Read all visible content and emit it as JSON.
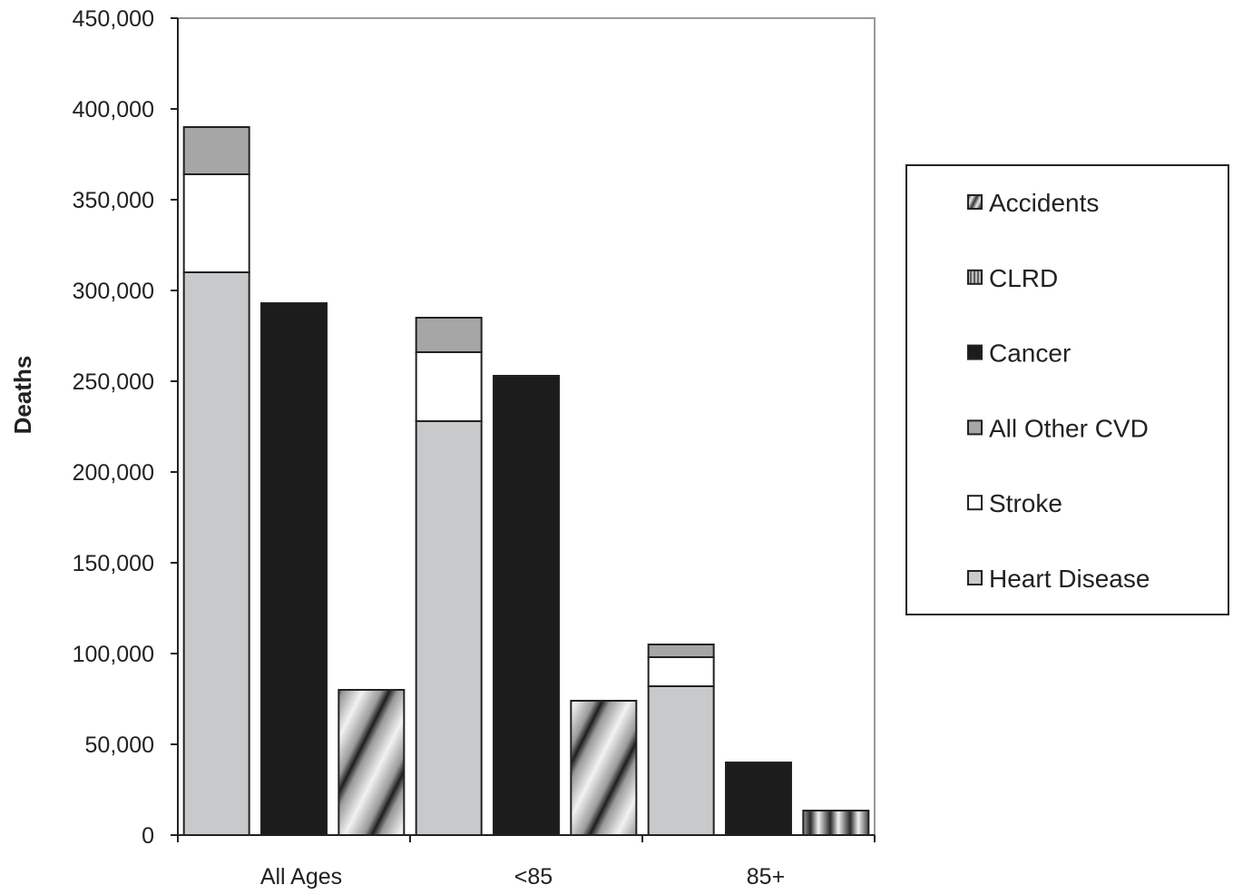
{
  "chart_data": {
    "type": "bar",
    "ylabel": "Deaths",
    "ylim": [
      0,
      450000
    ],
    "yticks": [
      0,
      50000,
      100000,
      150000,
      200000,
      250000,
      300000,
      350000,
      400000,
      450000
    ],
    "ytick_labels": [
      "0",
      "50,000",
      "100,000",
      "150,000",
      "200,000",
      "250,000",
      "300,000",
      "350,000",
      "400,000",
      "450,000"
    ],
    "grid": false,
    "legend_position": "right",
    "groups": [
      "All Ages",
      "<85",
      "85+"
    ],
    "legend": [
      {
        "name": "Accidents",
        "pattern": "diagonal-gradient"
      },
      {
        "name": "CLRD",
        "pattern": "vertical-stripes"
      },
      {
        "name": "Cancer",
        "color": "#1c1c1c"
      },
      {
        "name": "All Other CVD",
        "color": "#a6a6a6"
      },
      {
        "name": "Stroke",
        "color": "#ffffff"
      },
      {
        "name": "Heart Disease",
        "color": "#c8c9cb"
      }
    ],
    "bars": [
      {
        "group": "All Ages",
        "kind": "cvd",
        "segments": [
          {
            "series": "Heart Disease",
            "value": 310000
          },
          {
            "series": "Stroke",
            "value": 54000
          },
          {
            "series": "All Other CVD",
            "value": 26000
          }
        ]
      },
      {
        "group": "All Ages",
        "kind": "single",
        "segments": [
          {
            "series": "Cancer",
            "value": 293000
          }
        ]
      },
      {
        "group": "All Ages",
        "kind": "single",
        "segments": [
          {
            "series": "Accidents",
            "value": 80000
          }
        ]
      },
      {
        "group": "<85",
        "kind": "cvd",
        "segments": [
          {
            "series": "Heart Disease",
            "value": 228000
          },
          {
            "series": "Stroke",
            "value": 38000
          },
          {
            "series": "All Other CVD",
            "value": 19000
          }
        ]
      },
      {
        "group": "<85",
        "kind": "single",
        "segments": [
          {
            "series": "Cancer",
            "value": 253000
          }
        ]
      },
      {
        "group": "<85",
        "kind": "single",
        "segments": [
          {
            "series": "Accidents",
            "value": 74000
          }
        ]
      },
      {
        "group": "85+",
        "kind": "cvd",
        "segments": [
          {
            "series": "Heart Disease",
            "value": 82000
          },
          {
            "series": "Stroke",
            "value": 16000
          },
          {
            "series": "All Other CVD",
            "value": 7000
          }
        ]
      },
      {
        "group": "85+",
        "kind": "single",
        "segments": [
          {
            "series": "Cancer",
            "value": 40000
          }
        ]
      },
      {
        "group": "85+",
        "kind": "single",
        "segments": [
          {
            "series": "CLRD",
            "value": 13500
          }
        ]
      }
    ]
  }
}
